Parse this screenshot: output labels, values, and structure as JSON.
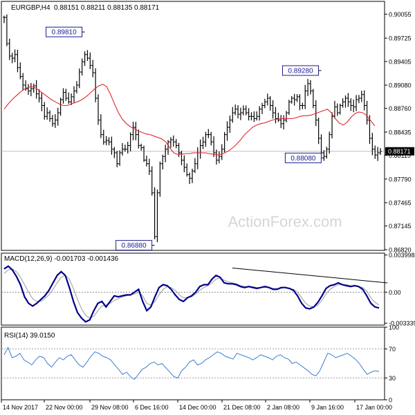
{
  "chart_data": [
    {
      "type": "candlestick",
      "title": "EURGBP,H4",
      "ohlc_text": "0.88151 0.88211 0.88135 0.88171",
      "watermark": "ActionForex.com",
      "colors": {
        "bars": "#000000",
        "ma": "#e3262f",
        "price_line": "#aaaaaa",
        "label_bg": "#ffffff",
        "label_border": "#1a1a8c"
      },
      "ylim": [
        0.8681,
        0.9023
      ],
      "yticks": [
        "0.90055",
        "0.89725",
        "0.89405",
        "0.89080",
        "0.88760",
        "0.88435",
        "0.88115",
        "0.87790",
        "0.87465",
        "0.87145",
        "0.86820"
      ],
      "current_price": "0.88171",
      "annotations": [
        "0.89810",
        "0.89280",
        "0.88080",
        "0.86880"
      ],
      "series": [
        {
          "y": [
            0.9001,
            0.8965,
            0.8948,
            0.8945,
            0.895,
            0.8932,
            0.892,
            0.8908,
            0.8903,
            0.89,
            0.8903,
            0.8907,
            0.8896,
            0.889,
            0.888,
            0.8865,
            0.887,
            0.8862,
            0.8855,
            0.886,
            0.887,
            0.8888,
            0.8898,
            0.889,
            0.8885,
            0.8892,
            0.89,
            0.8908,
            0.8926,
            0.894,
            0.895,
            0.8945,
            0.8935,
            0.8925,
            0.889,
            0.886,
            0.884,
            0.883,
            0.8832,
            0.883,
            0.882,
            0.8815,
            0.88,
            0.8815,
            0.882,
            0.882,
            0.8825,
            0.884,
            0.885,
            0.884,
            0.8825,
            0.8822,
            0.8805,
            0.88,
            0.879,
            0.876,
            0.87,
            0.876,
            0.88,
            0.881,
            0.882,
            0.883,
            0.8833,
            0.883,
            0.8825,
            0.8815,
            0.8805,
            0.8795,
            0.8785,
            0.878,
            0.879,
            0.88,
            0.8815,
            0.8825,
            0.883,
            0.884,
            0.884,
            0.883,
            0.8815,
            0.8805,
            0.881,
            0.882,
            0.884,
            0.885,
            0.886,
            0.887,
            0.8875,
            0.8868,
            0.887,
            0.8875,
            0.887,
            0.8865,
            0.8865,
            0.8862,
            0.8865,
            0.8875,
            0.888,
            0.8885,
            0.889,
            0.888,
            0.887,
            0.8862,
            0.886,
            0.8855,
            0.886,
            0.887,
            0.8885,
            0.889,
            0.8888,
            0.8892,
            0.888,
            0.888,
            0.89,
            0.891,
            0.89,
            0.888,
            0.886,
            0.8835,
            0.8815,
            0.881,
            0.882,
            0.884,
            0.8865,
            0.8878,
            0.887,
            0.888,
            0.8885,
            0.889,
            0.8885,
            0.888,
            0.8878,
            0.8888,
            0.889,
            0.8895,
            0.888,
            0.886,
            0.8835,
            0.882,
            0.8812,
            0.8815,
            0.8817
          ]
        },
        {
          "name": "MA",
          "y": [
            0.8875,
            0.8882,
            0.8888,
            0.8893,
            0.8898,
            0.8902,
            0.8905,
            0.8906,
            0.8904,
            0.89,
            0.8896,
            0.8892,
            0.8888,
            0.8885,
            0.8882,
            0.888,
            0.888,
            0.8882,
            0.8884,
            0.8886,
            0.8889,
            0.8893,
            0.8898,
            0.8903,
            0.8907,
            0.8909,
            0.8906,
            0.8895,
            0.8882,
            0.887,
            0.8861,
            0.8855,
            0.8851,
            0.8848,
            0.8845,
            0.8843,
            0.8841,
            0.884,
            0.8838,
            0.8836,
            0.8834,
            0.883,
            0.8822,
            0.8815,
            0.8813,
            0.8813,
            0.8814,
            0.8814,
            0.8815,
            0.8815,
            0.8815,
            0.8815,
            0.8814,
            0.8813,
            0.8812,
            0.8813,
            0.8815,
            0.8818,
            0.8822,
            0.8827,
            0.8833,
            0.884,
            0.8845,
            0.885,
            0.8853,
            0.8855,
            0.8856,
            0.8858,
            0.886,
            0.8861,
            0.8862,
            0.8862,
            0.8862,
            0.8862,
            0.8863,
            0.8865,
            0.8866,
            0.8866,
            0.8867,
            0.8869,
            0.8871,
            0.8873,
            0.8875,
            0.887,
            0.8862,
            0.8856,
            0.8853,
            0.8857,
            0.8864,
            0.8869,
            0.8871,
            0.887,
            0.8866,
            0.8859,
            0.8852
          ]
        }
      ]
    },
    {
      "type": "line",
      "title": "MACD(12,26,9) -0.001703 -0.001436",
      "colors": {
        "macd": "#00008b",
        "signal": "#9a9a9a",
        "trendline": "#000000"
      },
      "ylim": [
        -0.00355,
        0.0042
      ],
      "yticks": [
        "0.003998",
        "0.00",
        "-0.003339"
      ],
      "series": [
        {
          "name": "MACD",
          "y": [
            0.0025,
            0.0028,
            0.0024,
            0.0017,
            0.0008,
            -0.0005,
            -0.0012,
            -0.0015,
            -0.0012,
            -0.0008,
            -0.0004,
            0.0002,
            0.001,
            0.0018,
            0.0022,
            0.0018,
            0.0005,
            -0.001,
            -0.0022,
            -0.0028,
            -0.0032,
            -0.003,
            -0.002,
            -0.0012,
            -0.001,
            -0.0016,
            -0.001,
            -0.0004,
            -0.0005,
            -0.0004,
            -0.0003,
            -0.0003,
            0.0,
            0.0003,
            -0.001,
            -0.002,
            -0.0016,
            -0.0005,
            0.0005,
            0.0008,
            0.0007,
            0.0003,
            -0.0003,
            -0.0008,
            -0.001,
            -0.0006,
            -0.0004,
            0.0,
            0.0006,
            0.0008,
            0.0008,
            0.0014,
            0.0018,
            0.0016,
            0.001,
            0.0009,
            0.0009,
            0.0008,
            0.0006,
            0.0005,
            0.0006,
            0.0005,
            0.0004,
            0.0005,
            0.0006,
            0.0005,
            0.0003,
            0.0003,
            0.0005,
            0.0005,
            0.0004,
            0.0002,
            -0.0004,
            -0.0012,
            -0.0017,
            -0.0018,
            -0.0016,
            -0.0011,
            -0.0004,
            0.0004,
            0.0007,
            0.0008,
            0.001,
            0.0008,
            0.0007,
            0.0006,
            0.0007,
            0.0006,
            0.0003,
            -0.0004,
            -0.0012,
            -0.0016,
            -0.0017
          ]
        },
        {
          "name": "Signal",
          "y": [
            0.002,
            0.0024,
            0.0025,
            0.0022,
            0.0016,
            0.0008,
            0.0,
            -0.0007,
            -0.001,
            -0.001,
            -0.0007,
            -0.0003,
            0.0003,
            0.001,
            0.0016,
            0.0018,
            0.0014,
            0.0004,
            -0.0008,
            -0.0018,
            -0.0025,
            -0.0028,
            -0.0026,
            -0.002,
            -0.0015,
            -0.0014,
            -0.0012,
            -0.0009,
            -0.0007,
            -0.0005,
            -0.0004,
            -0.0003,
            -0.0002,
            0.0,
            -0.0004,
            -0.0012,
            -0.0014,
            -0.001,
            -0.0003,
            0.0003,
            0.0006,
            0.0005,
            0.0002,
            -0.0003,
            -0.0006,
            -0.0006,
            -0.0005,
            -0.0002,
            0.0002,
            0.0005,
            0.0007,
            0.001,
            0.0014,
            0.0015,
            0.0013,
            0.0011,
            0.001,
            0.0009,
            0.0007,
            0.0006,
            0.0006,
            0.0006,
            0.0005,
            0.0005,
            0.0005,
            0.0005,
            0.0004,
            0.0004,
            0.0004,
            0.0005,
            0.0004,
            0.0003,
            0.0,
            -0.0006,
            -0.0012,
            -0.0015,
            -0.0016,
            -0.0014,
            -0.0009,
            -0.0002,
            0.0003,
            0.0006,
            0.0008,
            0.0008,
            0.0008,
            0.0007,
            0.0007,
            0.0006,
            0.0005,
            0.0001,
            -0.0006,
            -0.0011,
            -0.0014
          ]
        }
      ],
      "trendline": {
        "start_index": 56,
        "end_index": 94,
        "y_start": 0.0026,
        "y_end": 0.001
      }
    },
    {
      "type": "line",
      "title": "RSI(14) 39.0150",
      "colors": {
        "rsi": "#3a7bd5",
        "levels": "#808080"
      },
      "ylim": [
        0,
        100
      ],
      "yticks": [
        "100",
        "70",
        "30",
        "0"
      ],
      "levels": [
        70,
        30
      ],
      "series": [
        {
          "name": "RSI(14)",
          "y": [
            62,
            72,
            58,
            60,
            64,
            55,
            52,
            48,
            55,
            60,
            58,
            50,
            45,
            52,
            58,
            55,
            60,
            62,
            55,
            48,
            45,
            52,
            60,
            66,
            64,
            60,
            58,
            55,
            48,
            42,
            35,
            38,
            32,
            28,
            35,
            42,
            45,
            50,
            52,
            48,
            50,
            44,
            38,
            32,
            30,
            40,
            45,
            52,
            55,
            48,
            50,
            55,
            58,
            62,
            66,
            64,
            60,
            58,
            56,
            64,
            62,
            60,
            58,
            55,
            58,
            62,
            60,
            58,
            55,
            60,
            62,
            58,
            56,
            50,
            52,
            48,
            44,
            40,
            35,
            33,
            40,
            52,
            64,
            62,
            58,
            60,
            62,
            64,
            60,
            56,
            50,
            42,
            35,
            38,
            40,
            39
          ]
        }
      ]
    }
  ],
  "x_axis": {
    "tick_labels": [
      "14 Nov 2017",
      "22 Nov 00:00",
      "29 Nov 08:00",
      "6 Dec 16:00",
      "14 Dec 00:00",
      "21 Dec 08:00",
      "2 Jan 08:00",
      "9 Jan 16:00",
      "17 Jan 00:00"
    ]
  }
}
